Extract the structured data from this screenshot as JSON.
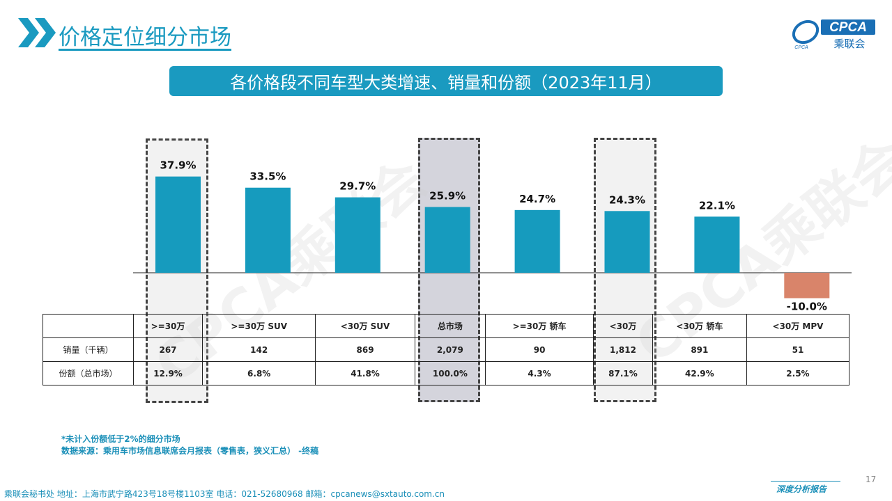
{
  "header": {
    "title": "价格定位细分市场"
  },
  "logo": {
    "text": "CPCA",
    "subtext": "乘联会",
    "swoosh_text": "CPCA"
  },
  "banner": {
    "title": "各价格段不同车型大类增速、销量和份额（2023年11月）"
  },
  "watermark": "CPCA乘联会",
  "colors": {
    "accent": "#1a9ac0",
    "bar_positive": "#169bbe",
    "bar_negative": "#d9846a",
    "highlight_total": "#d4d4dc",
    "highlight_light": "#f2f2f2"
  },
  "chart_data": {
    "type": "bar",
    "categories": [
      ">=30万",
      ">=30万 SUV",
      "<30万 SUV",
      "总市场",
      ">=30万 轿车",
      "<30万",
      "<30万 轿车",
      "<30万 MPV"
    ],
    "values": [
      37.9,
      33.5,
      29.7,
      25.9,
      24.7,
      24.3,
      22.1,
      -10.0
    ],
    "data_labels": [
      "37.9%",
      "33.5%",
      "29.7%",
      "25.9%",
      "24.7%",
      "24.3%",
      "22.1%",
      "-10.0%"
    ],
    "highlighted": [
      ">=30万",
      "总市场",
      "<30万"
    ]
  },
  "table": {
    "rows": [
      {
        "label": "销量（千辆）",
        "cells": [
          "267",
          "142",
          "869",
          "2,079",
          "90",
          "1,812",
          "891",
          "51"
        ]
      },
      {
        "label": "份额（总市场）",
        "cells": [
          "12.9%",
          "6.8%",
          "41.8%",
          "100.0%",
          "4.3%",
          "87.1%",
          "42.9%",
          "2.5%"
        ]
      }
    ]
  },
  "notes": {
    "line1": "*未计入份额低于2%的细分市场",
    "line2": "数据来源：乘用车市场信息联席会月报表（零售表，狭义汇总）  -终稿"
  },
  "footer": {
    "text": "乘联会秘书处    地址：上海市武宁路423号18号楼1103室    电话：021-52680968    邮箱：cpcanews@sxtauto.com.cn",
    "right": "深度分析报告",
    "page": "17"
  }
}
